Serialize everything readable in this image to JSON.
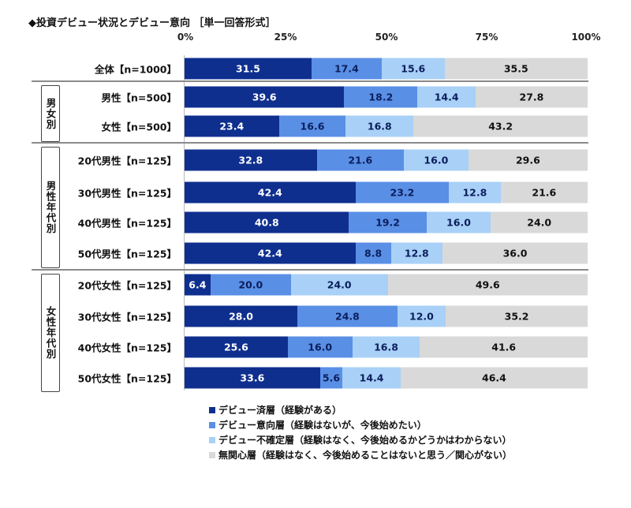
{
  "chart_data": {
    "type": "bar",
    "orientation": "horizontal-stacked-100",
    "title": "◆投資デビュー状況とデビュー意向 ［単一回答形式］",
    "xlim": [
      0,
      100
    ],
    "x_ticks": [
      "0%",
      "25%",
      "50%",
      "75%",
      "100%"
    ],
    "legend_position": "bottom",
    "series": [
      {
        "name": "デビュー済層（経験がある）",
        "color": "#0f2f8f",
        "text_color": "#ffffff"
      },
      {
        "name": "デビュー意向層（経験はないが、今後始めたい）",
        "color": "#5a8fe6",
        "text_color": "#0b1f5c"
      },
      {
        "name": "デビュー不確定層（経験はなく、今後始めるかどうかはわからない）",
        "color": "#a9d0f7",
        "text_color": "#0b1f5c"
      },
      {
        "name": "無関心層（経験はなく、今後始めることはないと思う／関心がない）",
        "color": "#d9d9d9",
        "text_color": "#111111"
      }
    ],
    "groups": [
      {
        "label": "",
        "rows": [
          0
        ]
      },
      {
        "label": "男女別",
        "rows": [
          1,
          2
        ]
      },
      {
        "label": "男性年代別",
        "rows": [
          3,
          4,
          5,
          6
        ]
      },
      {
        "label": "女性年代別",
        "rows": [
          7,
          8,
          9,
          10
        ]
      }
    ],
    "categories": [
      "全体【n=1000】",
      "男性【n=500】",
      "女性【n=500】",
      "20代男性【n=125】",
      "30代男性【n=125】",
      "40代男性【n=125】",
      "50代男性【n=125】",
      "20代女性【n=125】",
      "30代女性【n=125】",
      "40代女性【n=125】",
      "50代女性【n=125】"
    ],
    "values": [
      [
        "31.5",
        "17.4",
        "15.6",
        "35.5"
      ],
      [
        "39.6",
        "18.2",
        "14.4",
        "27.8"
      ],
      [
        "23.4",
        "16.6",
        "16.8",
        "43.2"
      ],
      [
        "32.8",
        "21.6",
        "16.0",
        "29.6"
      ],
      [
        "42.4",
        "23.2",
        "12.8",
        "21.6"
      ],
      [
        "40.8",
        "19.2",
        "16.0",
        "24.0"
      ],
      [
        "42.4",
        "8.8",
        "12.8",
        "36.0"
      ],
      [
        "6.4",
        "20.0",
        "24.0",
        "49.6"
      ],
      [
        "28.0",
        "24.8",
        "12.0",
        "35.2"
      ],
      [
        "25.6",
        "16.0",
        "16.8",
        "41.6"
      ],
      [
        "33.6",
        "5.6",
        "14.4",
        "46.4"
      ]
    ]
  }
}
